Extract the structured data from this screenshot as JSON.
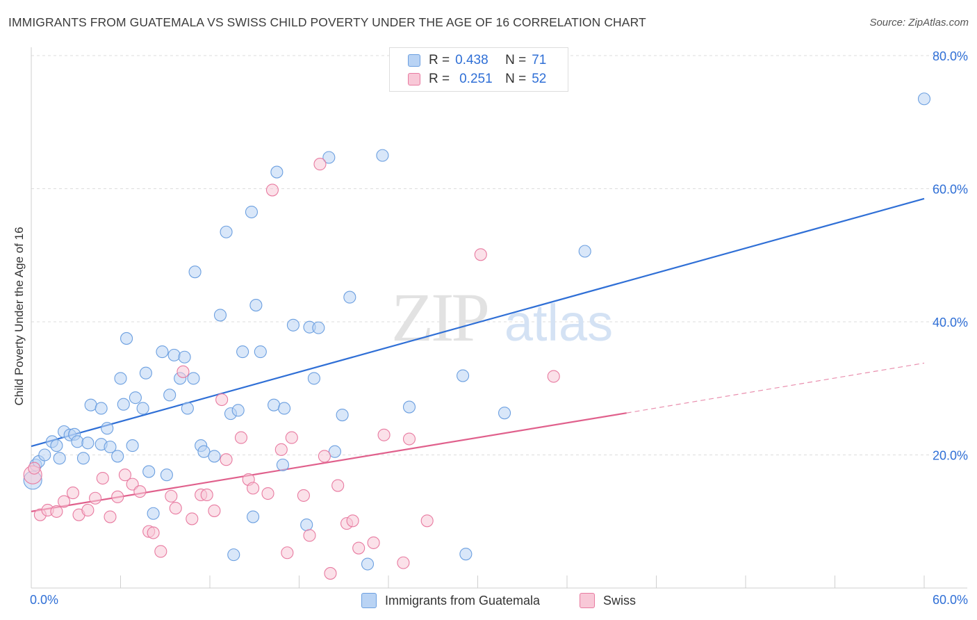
{
  "header": {
    "title": "IMMIGRANTS FROM GUATEMALA VS SWISS CHILD POVERTY UNDER THE AGE OF 16 CORRELATION CHART",
    "source": "Source: ZipAtlas.com"
  },
  "watermark": {
    "zip": "ZIP",
    "atlas": "atlas"
  },
  "legend": {
    "r_label": "R =",
    "n_label": "N =",
    "entries": [
      {
        "r": "0.438",
        "n": "71",
        "color": "#6b9fe0",
        "fill": "#b9d3f4"
      },
      {
        "r": "0.251",
        "n": "52",
        "color": "#e87aa0",
        "fill": "#f8c8d7"
      }
    ]
  },
  "chart_data": {
    "type": "scatter",
    "title": "IMMIGRANTS FROM GUATEMALA VS SWISS CHILD POVERTY UNDER THE AGE OF 16 CORRELATION CHART",
    "ylabel": "Child Poverty Under the Age of 16",
    "xlabel": "",
    "xlim": [
      0,
      60
    ],
    "ylim": [
      0,
      80
    ],
    "x_ticks": [
      "0.0%",
      "60.0%"
    ],
    "y_ticks": [
      "20.0%",
      "40.0%",
      "60.0%",
      "80.0%"
    ],
    "grid": "horizontal dashed",
    "legend_position": "top-center",
    "series": [
      {
        "name": "Immigrants from Guatemala",
        "color": "#2f6fd6",
        "marker_fill": "#b9d3f4",
        "trend": {
          "x": [
            0,
            60
          ],
          "y": [
            21.3,
            58.5
          ],
          "style": "solid"
        },
        "points": [
          [
            0.1,
            16.2
          ],
          [
            0.3,
            18.5
          ],
          [
            0.5,
            19.0
          ],
          [
            0.9,
            20.0
          ],
          [
            1.4,
            22.0
          ],
          [
            1.7,
            21.4
          ],
          [
            1.9,
            19.5
          ],
          [
            2.2,
            23.5
          ],
          [
            2.6,
            23.0
          ],
          [
            2.9,
            23.1
          ],
          [
            3.1,
            22.0
          ],
          [
            3.5,
            19.5
          ],
          [
            3.8,
            21.8
          ],
          [
            4.0,
            27.5
          ],
          [
            4.7,
            21.6
          ],
          [
            4.7,
            27.0
          ],
          [
            5.1,
            24.0
          ],
          [
            5.3,
            21.2
          ],
          [
            5.8,
            19.8
          ],
          [
            6.0,
            31.5
          ],
          [
            6.2,
            27.6
          ],
          [
            6.4,
            37.5
          ],
          [
            6.8,
            21.4
          ],
          [
            7.0,
            28.6
          ],
          [
            7.5,
            27.0
          ],
          [
            7.7,
            32.3
          ],
          [
            7.9,
            17.5
          ],
          [
            8.2,
            11.2
          ],
          [
            8.8,
            35.5
          ],
          [
            9.1,
            17.0
          ],
          [
            9.3,
            29.0
          ],
          [
            9.6,
            35.0
          ],
          [
            10.0,
            31.5
          ],
          [
            10.3,
            34.7
          ],
          [
            10.5,
            27.0
          ],
          [
            10.9,
            31.5
          ],
          [
            11.0,
            47.5
          ],
          [
            11.4,
            21.4
          ],
          [
            11.6,
            20.5
          ],
          [
            12.3,
            19.8
          ],
          [
            12.7,
            41.0
          ],
          [
            13.1,
            53.5
          ],
          [
            13.4,
            26.2
          ],
          [
            13.6,
            5.0
          ],
          [
            13.9,
            26.7
          ],
          [
            14.2,
            35.5
          ],
          [
            14.8,
            56.5
          ],
          [
            14.9,
            10.7
          ],
          [
            15.1,
            42.5
          ],
          [
            15.4,
            35.5
          ],
          [
            16.3,
            27.5
          ],
          [
            16.5,
            62.5
          ],
          [
            16.9,
            18.5
          ],
          [
            17.0,
            27.0
          ],
          [
            17.6,
            39.5
          ],
          [
            18.5,
            9.5
          ],
          [
            18.7,
            39.2
          ],
          [
            19.0,
            31.5
          ],
          [
            19.3,
            39.1
          ],
          [
            20.0,
            64.7
          ],
          [
            20.4,
            20.5
          ],
          [
            20.9,
            26.0
          ],
          [
            21.4,
            43.7
          ],
          [
            22.6,
            3.6
          ],
          [
            23.6,
            65.0
          ],
          [
            25.4,
            27.2
          ],
          [
            29.0,
            31.9
          ],
          [
            29.2,
            5.1
          ],
          [
            31.8,
            26.3
          ],
          [
            37.2,
            50.6
          ],
          [
            60.0,
            73.5
          ]
        ]
      },
      {
        "name": "Swiss",
        "color": "#e0608c",
        "marker_fill": "#f8c8d7",
        "trend": {
          "x": [
            0,
            40
          ],
          "y": [
            11.5,
            26.3
          ],
          "style": "solid",
          "extension": {
            "x": [
              40,
              60
            ],
            "y": [
              26.3,
              33.8
            ],
            "style": "dashed"
          }
        },
        "points": [
          [
            0.1,
            17.0
          ],
          [
            0.2,
            18.0
          ],
          [
            0.6,
            11.0
          ],
          [
            1.1,
            11.7
          ],
          [
            1.7,
            11.5
          ],
          [
            2.2,
            13.0
          ],
          [
            2.8,
            14.3
          ],
          [
            3.2,
            11.0
          ],
          [
            3.8,
            11.7
          ],
          [
            4.3,
            13.5
          ],
          [
            4.8,
            16.5
          ],
          [
            5.3,
            10.7
          ],
          [
            5.8,
            13.7
          ],
          [
            6.3,
            17.0
          ],
          [
            6.8,
            15.6
          ],
          [
            7.3,
            14.5
          ],
          [
            7.9,
            8.5
          ],
          [
            8.2,
            8.3
          ],
          [
            8.7,
            5.5
          ],
          [
            9.4,
            13.8
          ],
          [
            9.7,
            12.0
          ],
          [
            10.2,
            32.5
          ],
          [
            10.8,
            10.4
          ],
          [
            11.4,
            14.0
          ],
          [
            11.8,
            14.0
          ],
          [
            12.3,
            11.6
          ],
          [
            12.8,
            28.3
          ],
          [
            13.1,
            19.3
          ],
          [
            14.1,
            22.6
          ],
          [
            14.6,
            16.3
          ],
          [
            14.9,
            15.0
          ],
          [
            15.9,
            14.2
          ],
          [
            16.2,
            59.8
          ],
          [
            16.8,
            20.8
          ],
          [
            17.2,
            5.3
          ],
          [
            17.5,
            22.6
          ],
          [
            18.3,
            13.9
          ],
          [
            18.7,
            7.9
          ],
          [
            19.4,
            63.7
          ],
          [
            19.7,
            19.8
          ],
          [
            20.1,
            2.2
          ],
          [
            20.6,
            15.4
          ],
          [
            21.2,
            9.7
          ],
          [
            21.6,
            10.1
          ],
          [
            22.0,
            6.0
          ],
          [
            23.0,
            6.8
          ],
          [
            23.7,
            23.0
          ],
          [
            25.0,
            3.8
          ],
          [
            25.4,
            22.4
          ],
          [
            26.6,
            10.1
          ],
          [
            30.2,
            50.1
          ],
          [
            35.1,
            31.8
          ]
        ]
      }
    ]
  },
  "bottom_legend": {
    "items": [
      {
        "label": "Immigrants from Guatemala",
        "fill": "#b9d3f4",
        "stroke": "#6b9fe0"
      },
      {
        "label": "Swiss",
        "fill": "#f8c8d7",
        "stroke": "#e87aa0"
      }
    ]
  }
}
